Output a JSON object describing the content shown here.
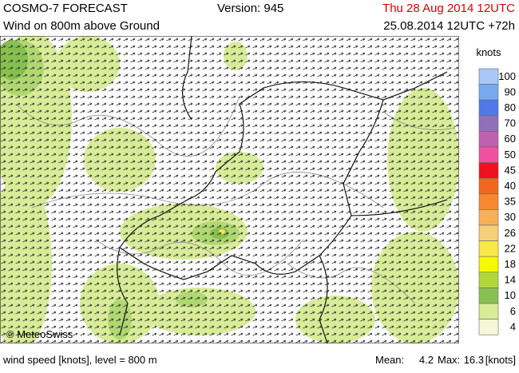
{
  "header": {
    "model": "COSMO-7 FORECAST",
    "version": "Version: 945",
    "valid_time": "Thu 28 Aug 2014 12UTC",
    "field": "Wind on 800m above Ground",
    "run": "25.08.2014 12UTC +72h"
  },
  "map": {
    "credit": "© MeteoSwiss"
  },
  "legend": {
    "unit": "knots",
    "items": [
      {
        "label": "100",
        "color": "#a8c8f8"
      },
      {
        "label": "90",
        "color": "#78a8f0"
      },
      {
        "label": "80",
        "color": "#5078e8"
      },
      {
        "label": "70",
        "color": "#9070b8"
      },
      {
        "label": "60",
        "color": "#c060b0"
      },
      {
        "label": "50",
        "color": "#f050a0"
      },
      {
        "label": "45",
        "color": "#f01020"
      },
      {
        "label": "40",
        "color": "#f06820"
      },
      {
        "label": "35",
        "color": "#f88830"
      },
      {
        "label": "30",
        "color": "#f8b058"
      },
      {
        "label": "26",
        "color": "#f8d078"
      },
      {
        "label": "22",
        "color": "#f8e848"
      },
      {
        "label": "18",
        "color": "#f8f800"
      },
      {
        "label": "14",
        "color": "#b0d838"
      },
      {
        "label": "10",
        "color": "#88c050"
      },
      {
        "label": "6",
        "color": "#d8ec98"
      },
      {
        "label": "4",
        "color": "#f4f8d8"
      }
    ]
  },
  "footer": {
    "description": "wind speed [knots], level = 800 m",
    "mean_label": "Mean:",
    "mean": "4.2",
    "max_label": "Max:",
    "max": "16.3",
    "unit": "[knots]"
  }
}
